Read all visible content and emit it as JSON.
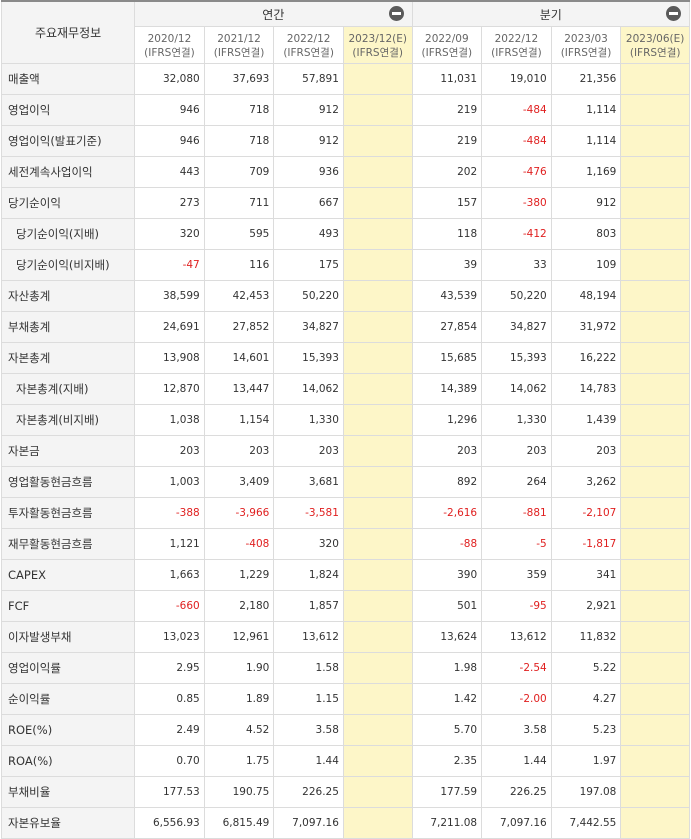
{
  "corner_label": "주요재무정보",
  "groups": {
    "annual": "연간",
    "quarterly": "분기"
  },
  "periods": [
    {
      "date": "2020/12",
      "basis": "(IFRS연결)"
    },
    {
      "date": "2021/12",
      "basis": "(IFRS연결)"
    },
    {
      "date": "2022/12",
      "basis": "(IFRS연결)"
    },
    {
      "date": "2023/12(E)",
      "basis": "(IFRS연결)"
    },
    {
      "date": "2022/09",
      "basis": "(IFRS연결)"
    },
    {
      "date": "2022/12",
      "basis": "(IFRS연결)"
    },
    {
      "date": "2023/03",
      "basis": "(IFRS연결)"
    },
    {
      "date": "2023/06(E)",
      "basis": "(IFRS연결)"
    }
  ],
  "colors": {
    "negative": "#e02020",
    "estimate_bg": "#fdf6c8",
    "header_bg": "#f4f4f4"
  },
  "rows": [
    {
      "label": "매출액",
      "values": [
        "32,080",
        "37,693",
        "57,891",
        "",
        "11,031",
        "19,010",
        "21,356",
        ""
      ]
    },
    {
      "label": "영업이익",
      "values": [
        "946",
        "718",
        "912",
        "",
        "219",
        "-484",
        "1,114",
        ""
      ]
    },
    {
      "label": "영업이익(발표기준)",
      "values": [
        "946",
        "718",
        "912",
        "",
        "219",
        "-484",
        "1,114",
        ""
      ]
    },
    {
      "label": "세전계속사업이익",
      "values": [
        "443",
        "709",
        "936",
        "",
        "202",
        "-476",
        "1,169",
        ""
      ]
    },
    {
      "label": "당기순이익",
      "values": [
        "273",
        "711",
        "667",
        "",
        "157",
        "-380",
        "912",
        ""
      ]
    },
    {
      "label": "당기순이익(지배)",
      "sub": true,
      "values": [
        "320",
        "595",
        "493",
        "",
        "118",
        "-412",
        "803",
        ""
      ]
    },
    {
      "label": "당기순이익(비지배)",
      "sub": true,
      "values": [
        "-47",
        "116",
        "175",
        "",
        "39",
        "33",
        "109",
        ""
      ]
    },
    {
      "label": "자산총계",
      "values": [
        "38,599",
        "42,453",
        "50,220",
        "",
        "43,539",
        "50,220",
        "48,194",
        ""
      ]
    },
    {
      "label": "부채총계",
      "values": [
        "24,691",
        "27,852",
        "34,827",
        "",
        "27,854",
        "34,827",
        "31,972",
        ""
      ]
    },
    {
      "label": "자본총계",
      "values": [
        "13,908",
        "14,601",
        "15,393",
        "",
        "15,685",
        "15,393",
        "16,222",
        ""
      ]
    },
    {
      "label": "자본총계(지배)",
      "sub": true,
      "values": [
        "12,870",
        "13,447",
        "14,062",
        "",
        "14,389",
        "14,062",
        "14,783",
        ""
      ]
    },
    {
      "label": "자본총계(비지배)",
      "sub": true,
      "values": [
        "1,038",
        "1,154",
        "1,330",
        "",
        "1,296",
        "1,330",
        "1,439",
        ""
      ]
    },
    {
      "label": "자본금",
      "values": [
        "203",
        "203",
        "203",
        "",
        "203",
        "203",
        "203",
        ""
      ]
    },
    {
      "label": "영업활동현금흐름",
      "values": [
        "1,003",
        "3,409",
        "3,681",
        "",
        "892",
        "264",
        "3,262",
        ""
      ]
    },
    {
      "label": "투자활동현금흐름",
      "values": [
        "-388",
        "-3,966",
        "-3,581",
        "",
        "-2,616",
        "-881",
        "-2,107",
        ""
      ]
    },
    {
      "label": "재무활동현금흐름",
      "values": [
        "1,121",
        "-408",
        "320",
        "",
        "-88",
        "-5",
        "-1,817",
        ""
      ]
    },
    {
      "label": "CAPEX",
      "values": [
        "1,663",
        "1,229",
        "1,824",
        "",
        "390",
        "359",
        "341",
        ""
      ]
    },
    {
      "label": "FCF",
      "values": [
        "-660",
        "2,180",
        "1,857",
        "",
        "501",
        "-95",
        "2,921",
        ""
      ]
    },
    {
      "label": "이자발생부채",
      "values": [
        "13,023",
        "12,961",
        "13,612",
        "",
        "13,624",
        "13,612",
        "11,832",
        ""
      ]
    },
    {
      "label": "영업이익률",
      "values": [
        "2.95",
        "1.90",
        "1.58",
        "",
        "1.98",
        "-2.54",
        "5.22",
        ""
      ]
    },
    {
      "label": "순이익률",
      "values": [
        "0.85",
        "1.89",
        "1.15",
        "",
        "1.42",
        "-2.00",
        "4.27",
        ""
      ]
    },
    {
      "label": "ROE(%)",
      "values": [
        "2.49",
        "4.52",
        "3.58",
        "",
        "5.70",
        "3.58",
        "5.23",
        ""
      ]
    },
    {
      "label": "ROA(%)",
      "values": [
        "0.70",
        "1.75",
        "1.44",
        "",
        "2.35",
        "1.44",
        "1.97",
        ""
      ]
    },
    {
      "label": "부채비율",
      "values": [
        "177.53",
        "190.75",
        "226.25",
        "",
        "177.59",
        "226.25",
        "197.08",
        ""
      ]
    },
    {
      "label": "자본유보율",
      "values": [
        "6,556.93",
        "6,815.49",
        "7,097.16",
        "",
        "7,211.08",
        "7,097.16",
        "7,442.55",
        ""
      ]
    }
  ]
}
